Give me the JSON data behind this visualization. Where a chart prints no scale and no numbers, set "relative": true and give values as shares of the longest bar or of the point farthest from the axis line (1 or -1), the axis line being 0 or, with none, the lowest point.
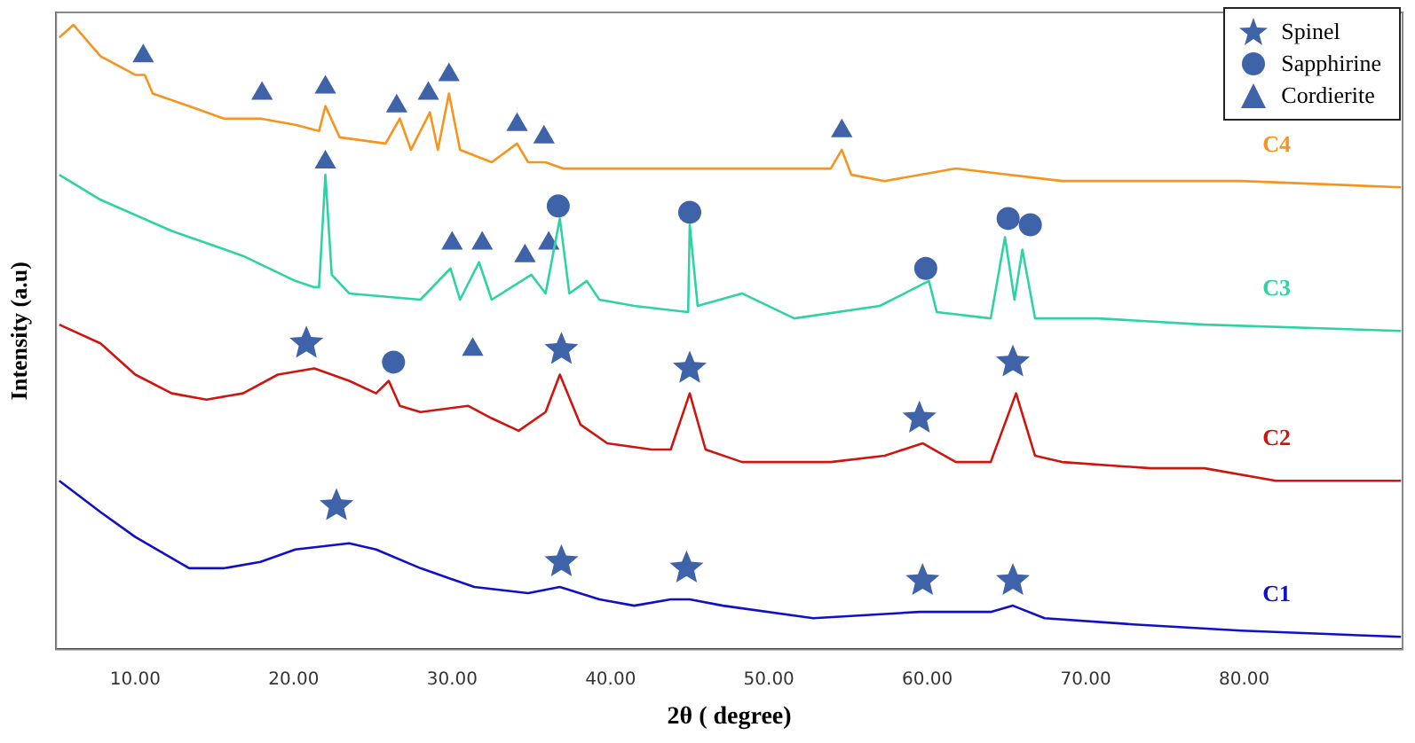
{
  "chart_data": {
    "type": "line",
    "relative": true,
    "xlabel": "2θ ( degree)",
    "ylabel": "Intensity (a.u)",
    "xlim": [
      5,
      90
    ],
    "xticks": [
      {
        "value": 10,
        "label": "10.00"
      },
      {
        "value": 20,
        "label": "20.00"
      },
      {
        "value": 30,
        "label": "30.00"
      },
      {
        "value": 40,
        "label": "40.00"
      },
      {
        "value": 50,
        "label": "50.00"
      },
      {
        "value": 60,
        "label": "60.00"
      },
      {
        "value": 70,
        "label": "70.00"
      },
      {
        "value": 80,
        "label": "80.00"
      }
    ],
    "grid": false,
    "tick_labels": "x",
    "legend": "top right",
    "line_style": "solid",
    "series": [
      {
        "name": "C4",
        "color": "#f7941d",
        "x": [
          5.2,
          6.1,
          7.8,
          10.0,
          10.6,
          11.1,
          13.4,
          15.6,
          17.9,
          20.1,
          21.6,
          22.0,
          22.9,
          25.8,
          26.7,
          27.4,
          28.6,
          29.1,
          29.8,
          30.5,
          32.5,
          34.1,
          34.8,
          35.9,
          37.0,
          41.5,
          46.0,
          53.9,
          54.6,
          55.2,
          57.3,
          61.8,
          68.5,
          74.1,
          79.8,
          89.9
        ],
        "values": [
          0.98,
          1.0,
          0.95,
          0.92,
          0.92,
          0.89,
          0.87,
          0.85,
          0.85,
          0.84,
          0.83,
          0.87,
          0.82,
          0.81,
          0.85,
          0.8,
          0.86,
          0.8,
          0.89,
          0.8,
          0.78,
          0.81,
          0.78,
          0.78,
          0.77,
          0.77,
          0.77,
          0.77,
          0.8,
          0.76,
          0.75,
          0.77,
          0.75,
          0.75,
          0.75,
          0.74
        ]
      },
      {
        "name": "C3",
        "color": "#2ed3a3",
        "x": [
          5.2,
          7.8,
          12.3,
          16.8,
          20.1,
          21.3,
          21.6,
          22.0,
          22.4,
          23.5,
          28.0,
          29.9,
          30.5,
          31.7,
          32.5,
          35.0,
          35.9,
          36.2,
          36.8,
          37.4,
          38.5,
          39.3,
          41.5,
          44.9,
          45.0,
          45.5,
          48.3,
          51.6,
          57.0,
          60.1,
          60.6,
          64.0,
          64.9,
          65.5,
          66.0,
          66.8,
          70.8,
          77.5,
          89.9
        ],
        "values": [
          0.76,
          0.72,
          0.67,
          0.63,
          0.59,
          0.58,
          0.58,
          0.76,
          0.6,
          0.57,
          0.56,
          0.61,
          0.56,
          0.62,
          0.56,
          0.6,
          0.57,
          0.61,
          0.69,
          0.57,
          0.59,
          0.56,
          0.55,
          0.54,
          0.68,
          0.55,
          0.57,
          0.53,
          0.55,
          0.59,
          0.54,
          0.53,
          0.66,
          0.56,
          0.64,
          0.53,
          0.53,
          0.52,
          0.51
        ]
      },
      {
        "name": "C2",
        "color": "#d0140f",
        "x": [
          5.2,
          7.8,
          10.0,
          12.3,
          14.5,
          16.8,
          19.0,
          21.3,
          23.5,
          25.2,
          26.0,
          26.7,
          28.0,
          31.0,
          32.5,
          34.2,
          35.9,
          36.8,
          38.1,
          39.8,
          42.6,
          43.8,
          45.0,
          46.0,
          48.3,
          53.9,
          57.3,
          59.7,
          61.8,
          64.0,
          65.6,
          66.8,
          68.5,
          74.1,
          77.5,
          82.0,
          89.9
        ],
        "values": [
          0.52,
          0.49,
          0.44,
          0.41,
          0.4,
          0.41,
          0.44,
          0.45,
          0.43,
          0.41,
          0.43,
          0.39,
          0.38,
          0.39,
          0.37,
          0.35,
          0.38,
          0.44,
          0.36,
          0.33,
          0.32,
          0.32,
          0.41,
          0.32,
          0.3,
          0.3,
          0.31,
          0.33,
          0.3,
          0.3,
          0.41,
          0.31,
          0.3,
          0.29,
          0.29,
          0.27,
          0.27
        ]
      },
      {
        "name": "C1",
        "color": "#1010c8",
        "x": [
          5.2,
          7.8,
          10.0,
          13.4,
          15.6,
          17.9,
          20.1,
          23.5,
          25.2,
          28.0,
          31.4,
          34.8,
          36.8,
          39.3,
          41.5,
          43.8,
          45.0,
          47.1,
          52.8,
          59.5,
          64.0,
          65.4,
          67.4,
          73.0,
          79.8,
          89.9
        ],
        "values": [
          0.27,
          0.22,
          0.18,
          0.13,
          0.13,
          0.14,
          0.16,
          0.17,
          0.16,
          0.13,
          0.1,
          0.09,
          0.1,
          0.08,
          0.07,
          0.08,
          0.08,
          0.07,
          0.05,
          0.06,
          0.06,
          0.07,
          0.05,
          0.04,
          0.03,
          0.02
        ]
      },
      {
        "name": "Spinel",
        "type": "scatter",
        "marker": "star",
        "color": "#3f63a8",
        "x": [
          20.8,
          36.9,
          45.0,
          59.5,
          65.4,
          22.7,
          36.9,
          44.8,
          59.7,
          65.4
        ],
        "values": [
          0.49,
          0.48,
          0.45,
          0.37,
          0.46,
          0.23,
          0.14,
          0.13,
          0.11,
          0.11
        ]
      },
      {
        "name": "Sapphirine",
        "type": "scatter",
        "marker": "circle",
        "color": "#3f63a8",
        "x": [
          36.7,
          45.0,
          59.9,
          65.1,
          66.5,
          26.3
        ],
        "values": [
          0.71,
          0.7,
          0.61,
          0.69,
          0.68,
          0.46
        ]
      },
      {
        "name": "Cordierite",
        "type": "scatter",
        "marker": "triangle",
        "color": "#3f63a8",
        "x": [
          10.5,
          18.0,
          22.0,
          26.5,
          28.5,
          29.8,
          34.1,
          35.8,
          54.6,
          22.0,
          30.0,
          31.9,
          34.6,
          36.1,
          31.3
        ],
        "values": [
          0.95,
          0.89,
          0.9,
          0.87,
          0.89,
          0.92,
          0.84,
          0.82,
          0.83,
          0.78,
          0.65,
          0.65,
          0.63,
          0.65,
          0.48
        ]
      }
    ]
  }
}
